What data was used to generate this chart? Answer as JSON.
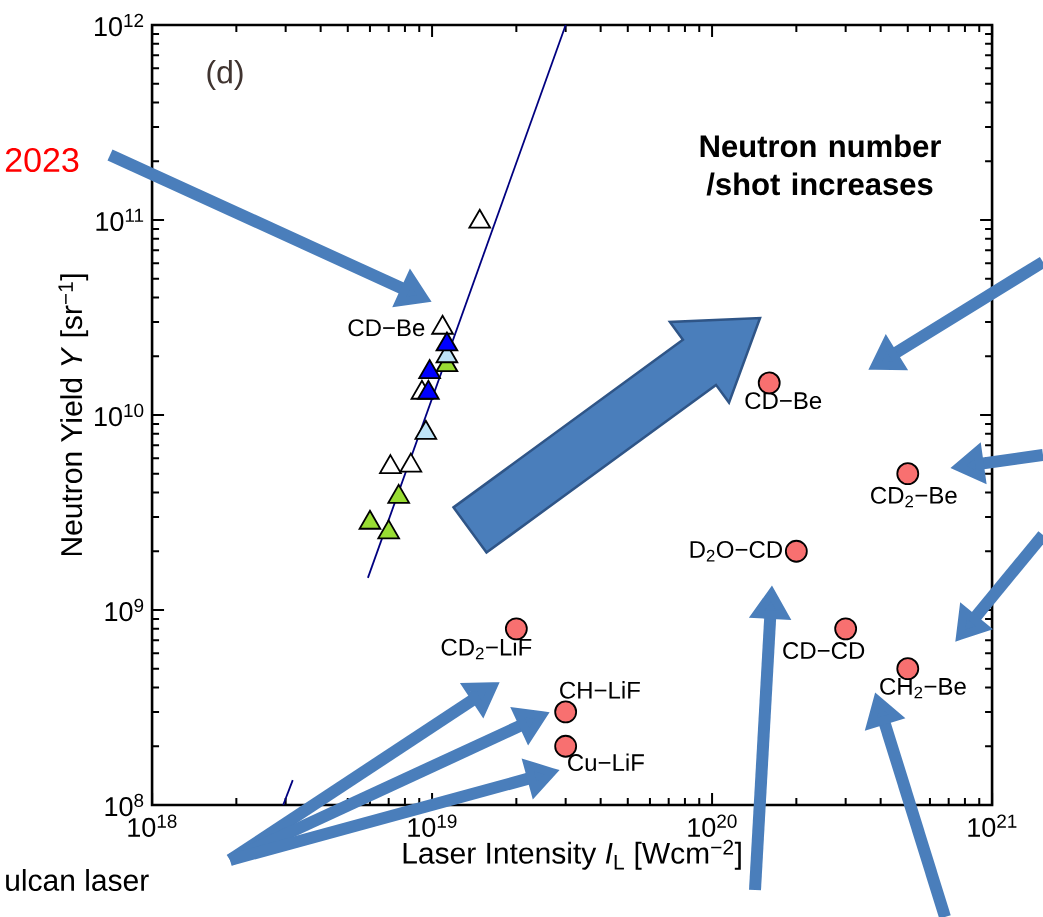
{
  "chart_data": {
    "type": "scatter",
    "xlabel": "Laser Intensity *I*$_{L}$ [Wcm$^{−2}$]",
    "ylabel": "Neutron Yield *Y* [sr$^{−1}$]",
    "log": "xy",
    "grid": false,
    "xlim": [
      1e+18,
      1e+21
    ],
    "ylim": [
      100000000.0,
      1000000000000.0
    ],
    "xticks": [
      {
        "value": 1e+18,
        "label": "10$^{18}$"
      },
      {
        "value": 1e+19,
        "label": "10$^{19}$"
      },
      {
        "value": 1e+20,
        "label": "10$^{20}$"
      },
      {
        "value": 1e+21,
        "label": "10$^{21}$"
      }
    ],
    "yticks": [
      {
        "value": 100000000.0,
        "label": "10$^{8}$"
      },
      {
        "value": 1000000000.0,
        "label": "10$^{9}$"
      },
      {
        "value": 10000000000.0,
        "label": "10$^{10}$"
      },
      {
        "value": 100000000000.0,
        "label": "10$^{11}$"
      },
      {
        "value": 1000000000000.0,
        "label": "10$^{12}$"
      }
    ],
    "annotations": [
      "(d)",
      "Neutron number /shot increases",
      "2023",
      "ulcan laser",
      {
        "text": "CD−Be",
        "x": 1.09e+19,
        "y": 28000000000.0
      },
      {
        "text": "CD−Be",
        "x": 1.6e+20,
        "y": 14600000000.0
      },
      {
        "text": "CD$_{2}$−Be",
        "x": 5e+20,
        "y": 5000000000.0
      },
      {
        "text": "D$_{2}$O−CD",
        "x": 2e+20,
        "y": 2000000000.0
      },
      {
        "text": "CD−CD",
        "x": 3e+20,
        "y": 800000000.0
      },
      {
        "text": "CH$_{2}$−Be",
        "x": 5e+20,
        "y": 500000000.0
      },
      {
        "text": "CD$_{2}$−LiF",
        "x": 2e+19,
        "y": 800000000.0
      },
      {
        "text": "CH−LiF",
        "x": 3e+19,
        "y": 300000000.0
      },
      {
        "text": "Cu−LiF",
        "x": 3e+19,
        "y": 200000000.0
      }
    ],
    "series": [
      {
        "type": "line",
        "color": "#000080",
        "marker": "none",
        "x": [
          5.9e+18,
          3e+19
        ],
        "values": [
          1460000000.0,
          1000000000000.0
        ]
      },
      {
        "type": "line",
        "color": "#000080",
        "marker": "none",
        "x": [
          2.94e+18,
          3.18e+18
        ],
        "values": [
          100000000.0,
          134000000.0
        ]
      },
      {
        "color": "#ffffff",
        "marker": "triangle",
        "x": [
          1.48e+19,
          1.09e+19,
          9.2e+18,
          7.1e+18,
          8.4e+18
        ],
        "values": [
          98000000000.0,
          28000000000.0,
          13000000000.0,
          5400000000.0,
          5500000000.0
        ]
      },
      {
        "color": "#99dd33",
        "marker": "triangle",
        "x": [
          1.13e+19,
          7.6e+18,
          6e+18,
          7e+18
        ],
        "values": [
          18000000000.0,
          3800000000.0,
          2800000000.0,
          2500000000.0
        ]
      },
      {
        "color": "#bde3f7",
        "marker": "triangle",
        "x": [
          1.13e+19,
          9.5e+18
        ],
        "values": [
          20000000000.0,
          8100000000.0
        ]
      },
      {
        "color": "#0000ff",
        "marker": "triangle",
        "x": [
          1.13e+19,
          9.8e+18,
          9.7e+18
        ],
        "values": [
          23000000000.0,
          16600000000.0,
          13000000000.0
        ]
      },
      {
        "color": "#f87070",
        "marker": "circle",
        "x": [
          1.6e+20,
          5e+20,
          2e+20,
          3e+20,
          5e+20,
          2e+19,
          3e+19,
          3e+19
        ],
        "values": [
          14600000000.0,
          5000000000.0,
          2000000000.0,
          800000000.0,
          500000000.0,
          800000000.0,
          300000000.0,
          200000000.0
        ]
      }
    ]
  }
}
